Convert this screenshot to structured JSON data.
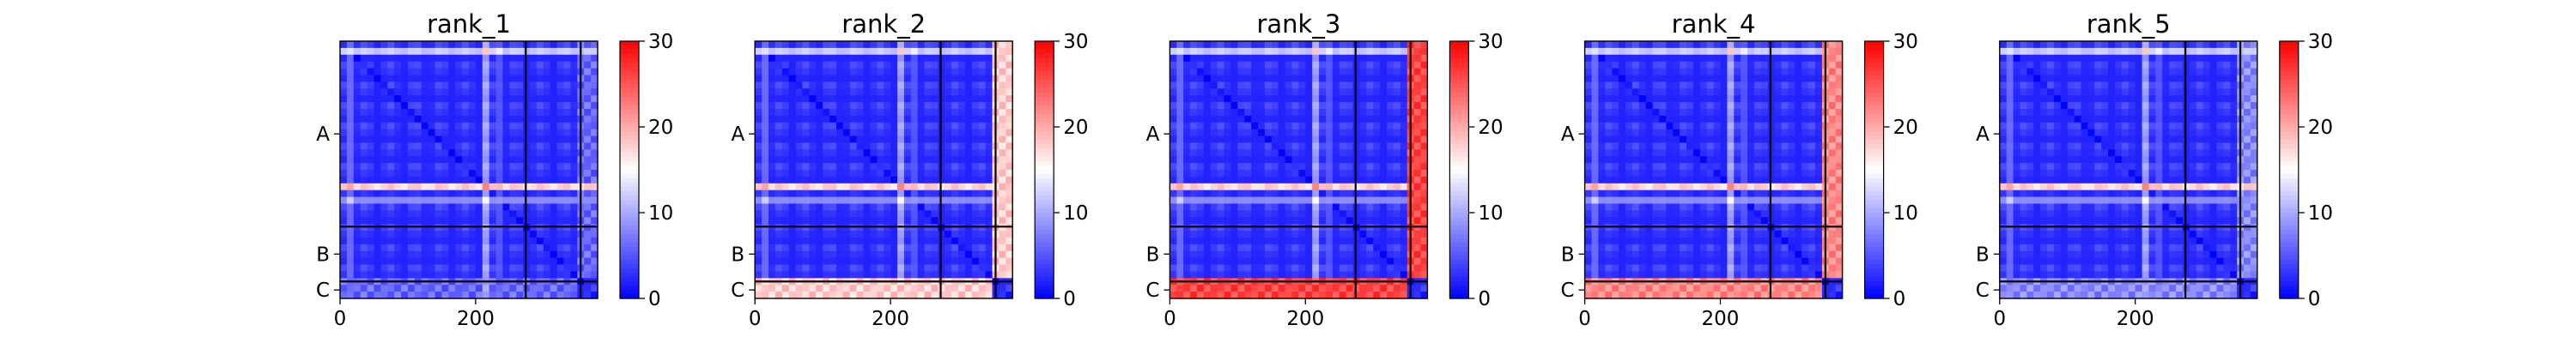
{
  "chart_data": [
    {
      "type": "heatmap",
      "title": "rank_1",
      "xlim": [
        0,
        380
      ],
      "ylim": [
        380,
        0
      ],
      "x_ticks": [
        0,
        200
      ],
      "y_tick_labels": [
        "A",
        "B",
        "C"
      ],
      "chain_boundaries": [
        274,
        355
      ],
      "colorbar": {
        "range": [
          0,
          30
        ],
        "ticks": [
          0,
          10,
          20,
          30
        ],
        "colormap": "bwr"
      },
      "matrix_profile": {
        "base": 2,
        "diag_width": 8,
        "c_chain_band": 6
      }
    },
    {
      "type": "heatmap",
      "title": "rank_2",
      "xlim": [
        0,
        380
      ],
      "ylim": [
        380,
        0
      ],
      "x_ticks": [
        0,
        200
      ],
      "y_tick_labels": [
        "A",
        "B",
        "C"
      ],
      "chain_boundaries": [
        274,
        355
      ],
      "colorbar": {
        "range": [
          0,
          30
        ],
        "ticks": [
          0,
          10,
          20,
          30
        ],
        "colormap": "bwr"
      },
      "matrix_profile": {
        "base": 2,
        "diag_width": 8,
        "c_chain_band": 18
      }
    },
    {
      "type": "heatmap",
      "title": "rank_3",
      "xlim": [
        0,
        380
      ],
      "ylim": [
        380,
        0
      ],
      "x_ticks": [
        0,
        200
      ],
      "y_tick_labels": [
        "A",
        "B",
        "C"
      ],
      "chain_boundaries": [
        274,
        355
      ],
      "colorbar": {
        "range": [
          0,
          30
        ],
        "ticks": [
          0,
          10,
          20,
          30
        ],
        "colormap": "bwr"
      },
      "matrix_profile": {
        "base": 2,
        "diag_width": 8,
        "c_chain_band": 26
      }
    },
    {
      "type": "heatmap",
      "title": "rank_4",
      "xlim": [
        0,
        380
      ],
      "ylim": [
        380,
        0
      ],
      "x_ticks": [
        0,
        200
      ],
      "y_tick_labels": [
        "A",
        "B",
        "C"
      ],
      "chain_boundaries": [
        274,
        355
      ],
      "colorbar": {
        "range": [
          0,
          30
        ],
        "ticks": [
          0,
          10,
          20,
          30
        ],
        "colormap": "bwr"
      },
      "matrix_profile": {
        "base": 2,
        "diag_width": 8,
        "c_chain_band": 22
      }
    },
    {
      "type": "heatmap",
      "title": "rank_5",
      "xlim": [
        0,
        380
      ],
      "ylim": [
        380,
        0
      ],
      "x_ticks": [
        0,
        200
      ],
      "y_tick_labels": [
        "A",
        "B",
        "C"
      ],
      "chain_boundaries": [
        274,
        355
      ],
      "colorbar": {
        "range": [
          0,
          30
        ],
        "ticks": [
          0,
          10,
          20,
          30
        ],
        "colormap": "bwr"
      },
      "matrix_profile": {
        "base": 2,
        "diag_width": 8,
        "c_chain_band": 8
      }
    }
  ]
}
